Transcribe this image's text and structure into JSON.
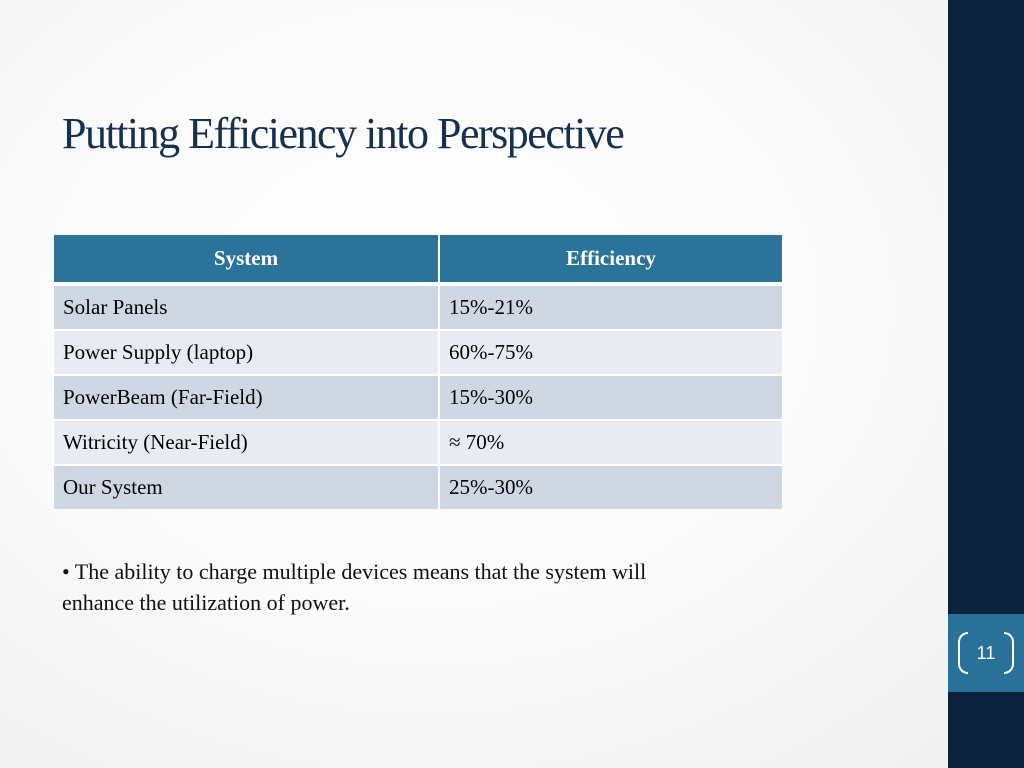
{
  "slide": {
    "title": "Putting Efficiency into Perspective",
    "page_number": "11"
  },
  "table": {
    "headers": [
      "System",
      "Efficiency"
    ],
    "rows": [
      [
        "Solar Panels",
        "15%-21%"
      ],
      [
        "Power Supply (laptop)",
        "60%-75%"
      ],
      [
        "PowerBeam (Far-Field)",
        "15%-30%"
      ],
      [
        "Witricity (Near-Field)",
        "≈ 70%"
      ],
      [
        "Our System",
        "25%-30%"
      ]
    ]
  },
  "bullet": {
    "text": "• The ability to charge multiple devices means that the system will enhance the utilization of power."
  },
  "colors": {
    "title": "#16304f",
    "header_fill": "#2c7399",
    "row_odd": "#cfd7e3",
    "row_even": "#e8ecf2",
    "sidebar": "#0c213b",
    "page_tab": "#2a7199"
  }
}
